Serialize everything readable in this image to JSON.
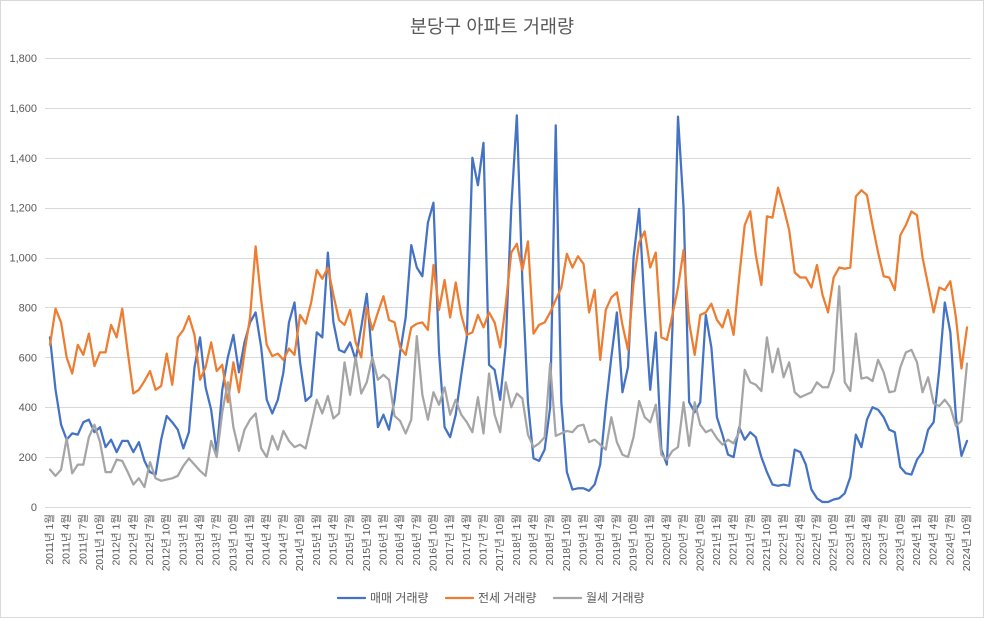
{
  "chart_data": {
    "type": "line",
    "title": "분당구 아파트 거래량",
    "xlabel": "",
    "ylabel": "",
    "ylim": [
      0,
      1800
    ],
    "grid": true,
    "legend": "bottom",
    "y_ticks": [
      0,
      200,
      400,
      600,
      800,
      1000,
      1200,
      1400,
      1600,
      1800
    ],
    "y_tick_labels": [
      "0",
      "200",
      "400",
      "600",
      "800",
      "1,000",
      "1,200",
      "1,400",
      "1,600",
      "1,800"
    ],
    "x_tick_labels": [
      "2011년 1월",
      "2011년 4월",
      "2011년 7월",
      "2011년 10월",
      "2012년 1월",
      "2012년 4월",
      "2012년 7월",
      "2012년 10월",
      "2013년 1월",
      "2013년 4월",
      "2013년 7월",
      "2013년 10월",
      "2014년 1월",
      "2014년 4월",
      "2014년 7월",
      "2014년 10월",
      "2015년 1월",
      "2015년 4월",
      "2015년 7월",
      "2015년 10월",
      "2016년 1월",
      "2016년 4월",
      "2016년 7월",
      "2016년 10월",
      "2017년 1월",
      "2017년 4월",
      "2017년 7월",
      "2017년 10월",
      "2018년 1월",
      "2018년 4월",
      "2018년 7월",
      "2018년 10월",
      "2019년 1월",
      "2019년 4월",
      "2019년 7월",
      "2019년 10월",
      "2020년 1월",
      "2020년 4월",
      "2020년 7월",
      "2020년 10월",
      "2021년 1월",
      "2021년 4월",
      "2021년 7월",
      "2021년 10월",
      "2022년 1월",
      "2022년 4월",
      "2022년 7월",
      "2022년 10월",
      "2023년 1월",
      "2023년 4월",
      "2023년 7월",
      "2023년 10월",
      "2024년 1월",
      "2024년 4월",
      "2024년 7월",
      "2024년 10월"
    ],
    "x": [
      "2011-01",
      "2011-02",
      "2011-03",
      "2011-04",
      "2011-05",
      "2011-06",
      "2011-07",
      "2011-08",
      "2011-09",
      "2011-10",
      "2011-11",
      "2011-12",
      "2012-01",
      "2012-02",
      "2012-03",
      "2012-04",
      "2012-05",
      "2012-06",
      "2012-07",
      "2012-08",
      "2012-09",
      "2012-10",
      "2012-11",
      "2012-12",
      "2013-01",
      "2013-02",
      "2013-03",
      "2013-04",
      "2013-05",
      "2013-06",
      "2013-07",
      "2013-08",
      "2013-09",
      "2013-10",
      "2013-11",
      "2013-12",
      "2014-01",
      "2014-02",
      "2014-03",
      "2014-04",
      "2014-05",
      "2014-06",
      "2014-07",
      "2014-08",
      "2014-09",
      "2014-10",
      "2014-11",
      "2014-12",
      "2015-01",
      "2015-02",
      "2015-03",
      "2015-04",
      "2015-05",
      "2015-06",
      "2015-07",
      "2015-08",
      "2015-09",
      "2015-10",
      "2015-11",
      "2015-12",
      "2016-01",
      "2016-02",
      "2016-03",
      "2016-04",
      "2016-05",
      "2016-06",
      "2016-07",
      "2016-08",
      "2016-09",
      "2016-10",
      "2016-11",
      "2016-12",
      "2017-01",
      "2017-02",
      "2017-03",
      "2017-04",
      "2017-05",
      "2017-06",
      "2017-07",
      "2017-08",
      "2017-09",
      "2017-10",
      "2017-11",
      "2017-12",
      "2018-01",
      "2018-02",
      "2018-03",
      "2018-04",
      "2018-05",
      "2018-06",
      "2018-07",
      "2018-08",
      "2018-09",
      "2018-10",
      "2018-11",
      "2018-12",
      "2019-01",
      "2019-02",
      "2019-03",
      "2019-04",
      "2019-05",
      "2019-06",
      "2019-07",
      "2019-08",
      "2019-09",
      "2019-10",
      "2019-11",
      "2019-12",
      "2020-01",
      "2020-02",
      "2020-03",
      "2020-04",
      "2020-05",
      "2020-06",
      "2020-07",
      "2020-08",
      "2020-09",
      "2020-10",
      "2020-11",
      "2020-12",
      "2021-01",
      "2021-02",
      "2021-03",
      "2021-04",
      "2021-05",
      "2021-06",
      "2021-07",
      "2021-08",
      "2021-09",
      "2021-10",
      "2021-11",
      "2021-12",
      "2022-01",
      "2022-02",
      "2022-03",
      "2022-04",
      "2022-05",
      "2022-06",
      "2022-07",
      "2022-08",
      "2022-09",
      "2022-10",
      "2022-11",
      "2022-12",
      "2023-01",
      "2023-02",
      "2023-03",
      "2023-04",
      "2023-05",
      "2023-06",
      "2023-07",
      "2023-08",
      "2023-09",
      "2023-10",
      "2023-11",
      "2023-12",
      "2024-01",
      "2024-02",
      "2024-03",
      "2024-04",
      "2024-05",
      "2024-06",
      "2024-07",
      "2024-08",
      "2024-09",
      "2024-10"
    ],
    "series": [
      {
        "name": "매매 거래량",
        "color": "#4472C4",
        "values": [
          680,
          470,
          330,
          270,
          295,
          290,
          340,
          350,
          300,
          320,
          240,
          270,
          220,
          265,
          265,
          220,
          260,
          185,
          140,
          130,
          270,
          365,
          340,
          310,
          235,
          300,
          560,
          680,
          480,
          390,
          215,
          470,
          600,
          690,
          540,
          660,
          740,
          780,
          640,
          430,
          375,
          430,
          540,
          740,
          820,
          580,
          425,
          445,
          700,
          680,
          1020,
          740,
          630,
          620,
          660,
          590,
          720,
          855,
          590,
          320,
          370,
          310,
          430,
          620,
          760,
          1050,
          960,
          925,
          1140,
          1220,
          620,
          320,
          280,
          370,
          530,
          680,
          1400,
          1290,
          1460,
          570,
          550,
          430,
          650,
          1200,
          1570,
          900,
          420,
          195,
          185,
          230,
          400,
          1530,
          420,
          140,
          70,
          75,
          75,
          65,
          90,
          170,
          400,
          600,
          780,
          460,
          560,
          1000,
          1195,
          800,
          470,
          700,
          230,
          170,
          720,
          1565,
          1200,
          420,
          380,
          420,
          770,
          640,
          360,
          290,
          210,
          200,
          320,
          270,
          300,
          280,
          200,
          140,
          90,
          85,
          90,
          85,
          230,
          220,
          170,
          70,
          35,
          20,
          20,
          30,
          35,
          55,
          120,
          290,
          240,
          350,
          400,
          390,
          360,
          310,
          300,
          160,
          135,
          130,
          190,
          220,
          310,
          340,
          550,
          820,
          700,
          360,
          205,
          265
        ]
      },
      {
        "name": "전세 거래량",
        "color": "#ED7D31",
        "values": [
          650,
          795,
          740,
          600,
          535,
          650,
          610,
          695,
          565,
          620,
          620,
          730,
          680,
          795,
          620,
          455,
          470,
          505,
          545,
          470,
          485,
          615,
          490,
          680,
          710,
          765,
          690,
          510,
          560,
          660,
          545,
          570,
          420,
          580,
          460,
          620,
          760,
          1045,
          830,
          650,
          605,
          615,
          590,
          635,
          610,
          770,
          735,
          820,
          950,
          915,
          960,
          850,
          750,
          730,
          790,
          660,
          600,
          800,
          710,
          780,
          845,
          750,
          740,
          640,
          610,
          720,
          735,
          740,
          710,
          970,
          790,
          910,
          760,
          900,
          770,
          690,
          700,
          770,
          720,
          780,
          740,
          640,
          810,
          1020,
          1055,
          950,
          1065,
          695,
          730,
          740,
          780,
          830,
          880,
          1015,
          960,
          1005,
          975,
          780,
          870,
          590,
          790,
          840,
          860,
          730,
          630,
          900,
          1060,
          1105,
          960,
          1020,
          680,
          670,
          770,
          880,
          1030,
          740,
          610,
          770,
          780,
          815,
          750,
          720,
          790,
          690,
          920,
          1130,
          1185,
          1010,
          890,
          1165,
          1160,
          1280,
          1200,
          1110,
          940,
          920,
          920,
          880,
          970,
          850,
          780,
          920,
          960,
          955,
          960,
          1245,
          1270,
          1250,
          1130,
          1020,
          925,
          920,
          870,
          1090,
          1130,
          1185,
          1170,
          1000,
          890,
          780,
          880,
          870,
          905,
          760,
          555,
          720
        ]
      },
      {
        "name": "월세 거래량",
        "color": "#A5A5A5",
        "values": [
          150,
          125,
          150,
          275,
          135,
          170,
          170,
          280,
          330,
          260,
          140,
          140,
          190,
          185,
          140,
          90,
          115,
          80,
          180,
          115,
          105,
          110,
          115,
          125,
          165,
          195,
          170,
          145,
          125,
          265,
          200,
          380,
          500,
          320,
          225,
          310,
          350,
          375,
          235,
          200,
          285,
          230,
          305,
          265,
          240,
          250,
          235,
          330,
          430,
          375,
          445,
          355,
          375,
          580,
          450,
          600,
          455,
          500,
          600,
          510,
          530,
          510,
          365,
          345,
          295,
          350,
          685,
          450,
          350,
          460,
          410,
          480,
          370,
          430,
          370,
          340,
          300,
          440,
          295,
          535,
          370,
          300,
          500,
          400,
          455,
          435,
          290,
          240,
          255,
          280,
          575,
          285,
          295,
          305,
          300,
          325,
          330,
          260,
          270,
          250,
          230,
          360,
          260,
          210,
          200,
          280,
          425,
          360,
          340,
          410,
          210,
          190,
          225,
          240,
          420,
          245,
          420,
          330,
          300,
          310,
          275,
          250,
          270,
          255,
          300,
          550,
          500,
          490,
          465,
          680,
          540,
          635,
          520,
          580,
          460,
          440,
          450,
          460,
          500,
          480,
          480,
          545,
          885,
          500,
          465,
          695,
          515,
          520,
          505,
          590,
          540,
          460,
          465,
          560,
          620,
          630,
          580,
          460,
          520,
          415,
          405,
          430,
          400,
          325,
          345,
          575
        ]
      }
    ]
  }
}
